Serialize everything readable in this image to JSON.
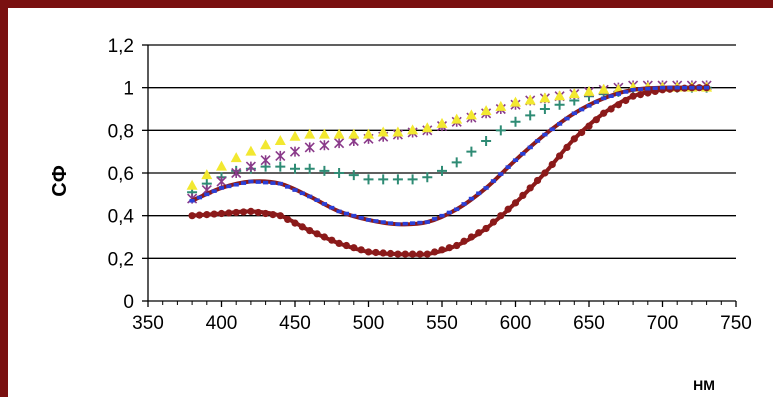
{
  "chart_data": {
    "type": "line",
    "title": "",
    "xlabel": "нм",
    "ylabel": "СФ",
    "xlim": [
      350,
      750
    ],
    "ylim": [
      0,
      1.2
    ],
    "x_ticks": [
      350,
      400,
      450,
      500,
      550,
      600,
      650,
      700,
      750
    ],
    "x_tick_labels": [
      "350",
      "400",
      "450",
      "500",
      "550",
      "600",
      "650",
      "700",
      "750"
    ],
    "y_ticks": [
      0,
      0.2,
      0.4,
      0.6,
      0.8,
      1.0,
      1.2
    ],
    "y_tick_labels": [
      "0",
      "0,2",
      "0,4",
      "0,6",
      "0,8",
      "1",
      "1,2"
    ],
    "grid": "horizontal",
    "legend": "none",
    "series": [
      {
        "color": "#8b1a1a",
        "marker": "circle",
        "line": true,
        "x": [
          380,
          400,
          420,
          440,
          460,
          480,
          500,
          520,
          540,
          560,
          580,
          600,
          620,
          640,
          660,
          680,
          700,
          720,
          730
        ],
        "y": [
          0.4,
          0.41,
          0.42,
          0.4,
          0.33,
          0.27,
          0.23,
          0.22,
          0.22,
          0.26,
          0.34,
          0.46,
          0.6,
          0.76,
          0.88,
          0.96,
          0.99,
          1.0,
          1.0
        ]
      },
      {
        "color": "#2a40d8",
        "marker": "square",
        "line": true,
        "x": [
          380,
          400,
          420,
          440,
          460,
          480,
          500,
          520,
          540,
          560,
          580,
          600,
          620,
          640,
          660,
          680,
          700,
          720,
          730
        ],
        "y": [
          0.47,
          0.53,
          0.56,
          0.55,
          0.49,
          0.42,
          0.38,
          0.36,
          0.37,
          0.43,
          0.53,
          0.66,
          0.78,
          0.88,
          0.95,
          0.99,
          1.0,
          1.0,
          1.0
        ]
      },
      {
        "color": "#2e8b74",
        "marker": "plus",
        "line": false,
        "x": [
          380,
          390,
          400,
          410,
          420,
          430,
          440,
          450,
          460,
          470,
          480,
          490,
          500,
          510,
          520,
          530,
          540,
          550,
          560,
          570,
          580,
          590,
          600,
          610,
          620,
          630,
          640,
          650,
          660,
          670,
          680,
          690,
          700,
          710,
          720,
          730
        ],
        "y": [
          0.51,
          0.55,
          0.58,
          0.61,
          0.62,
          0.63,
          0.63,
          0.62,
          0.62,
          0.61,
          0.6,
          0.59,
          0.57,
          0.57,
          0.57,
          0.57,
          0.58,
          0.61,
          0.65,
          0.7,
          0.75,
          0.8,
          0.84,
          0.87,
          0.9,
          0.92,
          0.94,
          0.96,
          0.97,
          0.98,
          0.99,
          0.99,
          1.0,
          1.0,
          1.0,
          1.0
        ]
      },
      {
        "color": "#8a3a8a",
        "marker": "x",
        "line": false,
        "x": [
          380,
          390,
          400,
          410,
          420,
          430,
          440,
          450,
          460,
          470,
          480,
          490,
          500,
          510,
          520,
          530,
          540,
          550,
          560,
          570,
          580,
          590,
          600,
          610,
          620,
          630,
          640,
          650,
          660,
          670,
          680,
          690,
          700,
          710,
          720,
          730
        ],
        "y": [
          0.48,
          0.52,
          0.56,
          0.6,
          0.63,
          0.66,
          0.68,
          0.7,
          0.72,
          0.73,
          0.74,
          0.75,
          0.76,
          0.77,
          0.78,
          0.79,
          0.8,
          0.82,
          0.84,
          0.86,
          0.88,
          0.9,
          0.92,
          0.94,
          0.95,
          0.96,
          0.97,
          0.98,
          0.99,
          1.0,
          1.01,
          1.01,
          1.01,
          1.01,
          1.01,
          1.01
        ]
      },
      {
        "color": "#f2e830",
        "marker": "triangle",
        "line": false,
        "x": [
          380,
          390,
          400,
          410,
          420,
          430,
          440,
          450,
          460,
          470,
          480,
          490,
          500,
          510,
          520,
          530,
          540,
          550,
          560,
          570,
          580,
          590,
          600,
          610,
          620,
          630,
          640,
          650,
          660,
          670,
          680,
          690,
          700,
          710,
          720,
          730
        ],
        "y": [
          0.54,
          0.59,
          0.63,
          0.67,
          0.7,
          0.73,
          0.75,
          0.77,
          0.78,
          0.78,
          0.78,
          0.78,
          0.78,
          0.79,
          0.79,
          0.8,
          0.81,
          0.83,
          0.85,
          0.87,
          0.89,
          0.91,
          0.93,
          0.94,
          0.95,
          0.96,
          0.97,
          0.98,
          0.99,
          0.99,
          1.0,
          1.0,
          1.0,
          1.0,
          1.0,
          1.0
        ]
      }
    ]
  }
}
